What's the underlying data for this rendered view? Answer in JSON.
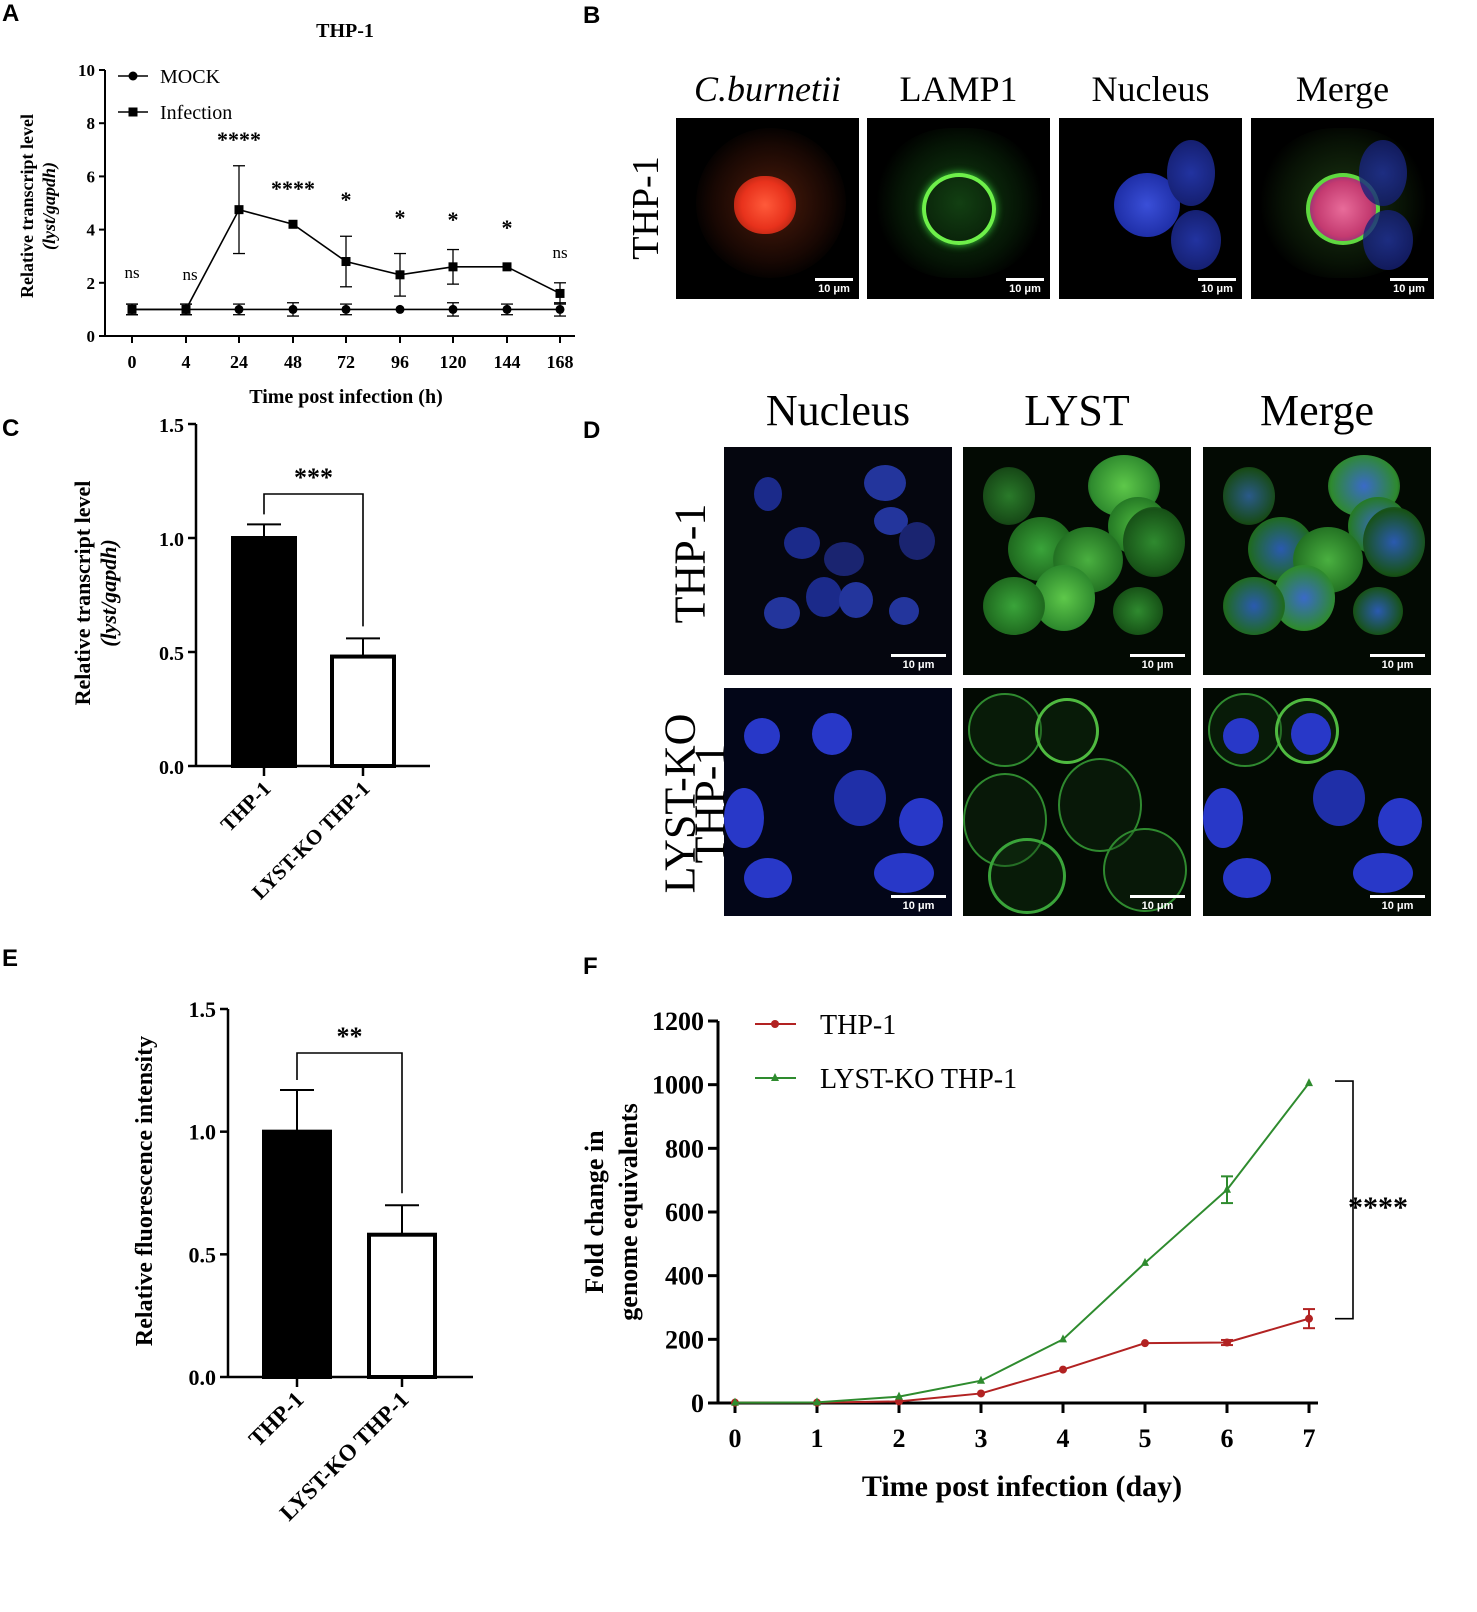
{
  "panels": {
    "a": "A",
    "b": "B",
    "c": "C",
    "d": "D",
    "e": "E",
    "f": "F"
  },
  "chart_data": [
    {
      "id": "A",
      "type": "line",
      "title": "THP-1",
      "xlabel": "Time post infection (h)",
      "ylabel_line1": "Relative transcript level",
      "ylabel_line2": "(lyst/gapdh)",
      "categories": [
        "0",
        "4",
        "24",
        "48",
        "72",
        "96",
        "120",
        "144",
        "168"
      ],
      "ylim": [
        0,
        10
      ],
      "yticks": [
        "0",
        "2",
        "4",
        "6",
        "8",
        "10"
      ],
      "series": [
        {
          "name": "MOCK",
          "marker": "circle",
          "values": [
            1,
            1,
            1,
            1,
            1,
            1,
            1,
            1,
            1
          ],
          "errors": [
            0.2,
            0.2,
            0.2,
            0.25,
            0.2,
            0.0,
            0.25,
            0.2,
            0.25
          ]
        },
        {
          "name": "Infection",
          "marker": "square",
          "values": [
            1,
            1,
            4.75,
            4.2,
            2.8,
            2.3,
            2.6,
            2.6,
            1.6
          ],
          "errors": [
            0.2,
            0.2,
            1.65,
            0.0,
            0.95,
            0.8,
            0.65,
            0.0,
            0.4
          ]
        }
      ],
      "annotations": [
        "ns",
        "ns",
        "****",
        "****",
        "*",
        "*",
        "*",
        "*",
        "ns"
      ]
    },
    {
      "id": "C",
      "type": "bar",
      "categories": [
        "THP-1",
        "LYST-KO THP-1"
      ],
      "values": [
        1.0,
        0.48
      ],
      "errors": [
        0.06,
        0.08
      ],
      "ylabel_line1": "Relative transcript level",
      "ylabel_line2": "(lyst/gapdh)",
      "ylim": [
        0,
        1.5
      ],
      "yticks": [
        "0.0",
        "0.5",
        "1.0",
        "1.5"
      ],
      "significance": "***"
    },
    {
      "id": "E",
      "type": "bar",
      "categories": [
        "THP-1",
        "LYST-KO THP-1"
      ],
      "values": [
        1.0,
        0.58
      ],
      "errors": [
        0.17,
        0.12
      ],
      "ylabel": "Relative fluorescence intensity",
      "ylim": [
        0,
        1.5
      ],
      "yticks": [
        "0.0",
        "0.5",
        "1.0",
        "1.5"
      ],
      "significance": "**"
    },
    {
      "id": "F",
      "type": "line",
      "xlabel": "Time post infection (day)",
      "ylabel_line1": "Fold change in",
      "ylabel_line2": "genome equivalents",
      "x": [
        0,
        1,
        2,
        3,
        4,
        5,
        6,
        7
      ],
      "xticks": [
        "0",
        "1",
        "2",
        "3",
        "4",
        "5",
        "6",
        "7"
      ],
      "ylim": [
        0,
        1200
      ],
      "yticks": [
        "0",
        "200",
        "400",
        "600",
        "800",
        "1000",
        "1200"
      ],
      "series": [
        {
          "name": "THP-1",
          "color": "#b22222",
          "marker": "circle",
          "values": [
            1,
            1,
            5,
            30,
            105,
            188,
            190,
            265
          ],
          "errors": [
            0,
            0,
            0,
            0,
            0,
            0,
            8,
            30
          ]
        },
        {
          "name": "LYST-KO THP-1",
          "color": "#2e8b2e",
          "marker": "triangle",
          "values": [
            1,
            2,
            20,
            70,
            200,
            440,
            670,
            1005
          ],
          "errors": [
            0,
            0,
            0,
            0,
            0,
            0,
            42,
            0
          ]
        }
      ],
      "significance": "****"
    }
  ],
  "micrographs_b": {
    "headers": [
      "C.burnetii",
      "LAMP1",
      "Nucleus",
      "Merge"
    ],
    "row_label": "THP-1",
    "scale": "10 μm"
  },
  "micrographs_d": {
    "headers": [
      "Nucleus",
      "LYST",
      "Merge"
    ],
    "row1_label": "THP-1",
    "row2_label_line1": "LYST-KO",
    "row2_label_line2": "THP-1",
    "scale": "10 μm"
  }
}
